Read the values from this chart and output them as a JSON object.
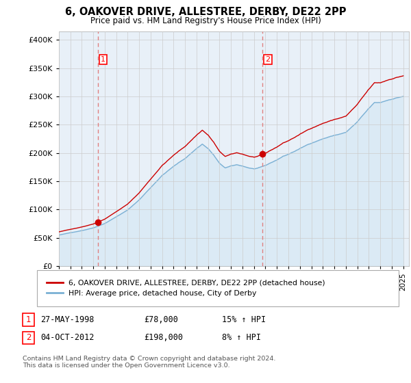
{
  "title": "6, OAKOVER DRIVE, ALLESTREE, DERBY, DE22 2PP",
  "subtitle": "Price paid vs. HM Land Registry's House Price Index (HPI)",
  "yticks": [
    0,
    50000,
    100000,
    150000,
    200000,
    250000,
    300000,
    350000,
    400000
  ],
  "ylim": [
    0,
    415000
  ],
  "xlim_start": 1995.0,
  "xlim_end": 2025.5,
  "sale1_date": 1998.41,
  "sale1_price": 78000,
  "sale1_label": "1",
  "sale2_date": 2012.75,
  "sale2_price": 198000,
  "sale2_label": "2",
  "red_line_color": "#cc0000",
  "blue_line_color": "#7ab0d4",
  "blue_fill_color": "#d6e8f5",
  "grid_color": "#cccccc",
  "background_color": "#ffffff",
  "chart_bg_color": "#e8f0f8",
  "legend_label_red": "6, OAKOVER DRIVE, ALLESTREE, DERBY, DE22 2PP (detached house)",
  "legend_label_blue": "HPI: Average price, detached house, City of Derby",
  "table_rows": [
    {
      "num": "1",
      "date": "27-MAY-1998",
      "price": "£78,000",
      "hpi": "15% ↑ HPI"
    },
    {
      "num": "2",
      "date": "04-OCT-2012",
      "price": "£198,000",
      "hpi": "8% ↑ HPI"
    }
  ],
  "footer": "Contains HM Land Registry data © Crown copyright and database right 2024.\nThis data is licensed under the Open Government Licence v3.0.",
  "vline_color": "#e08080"
}
